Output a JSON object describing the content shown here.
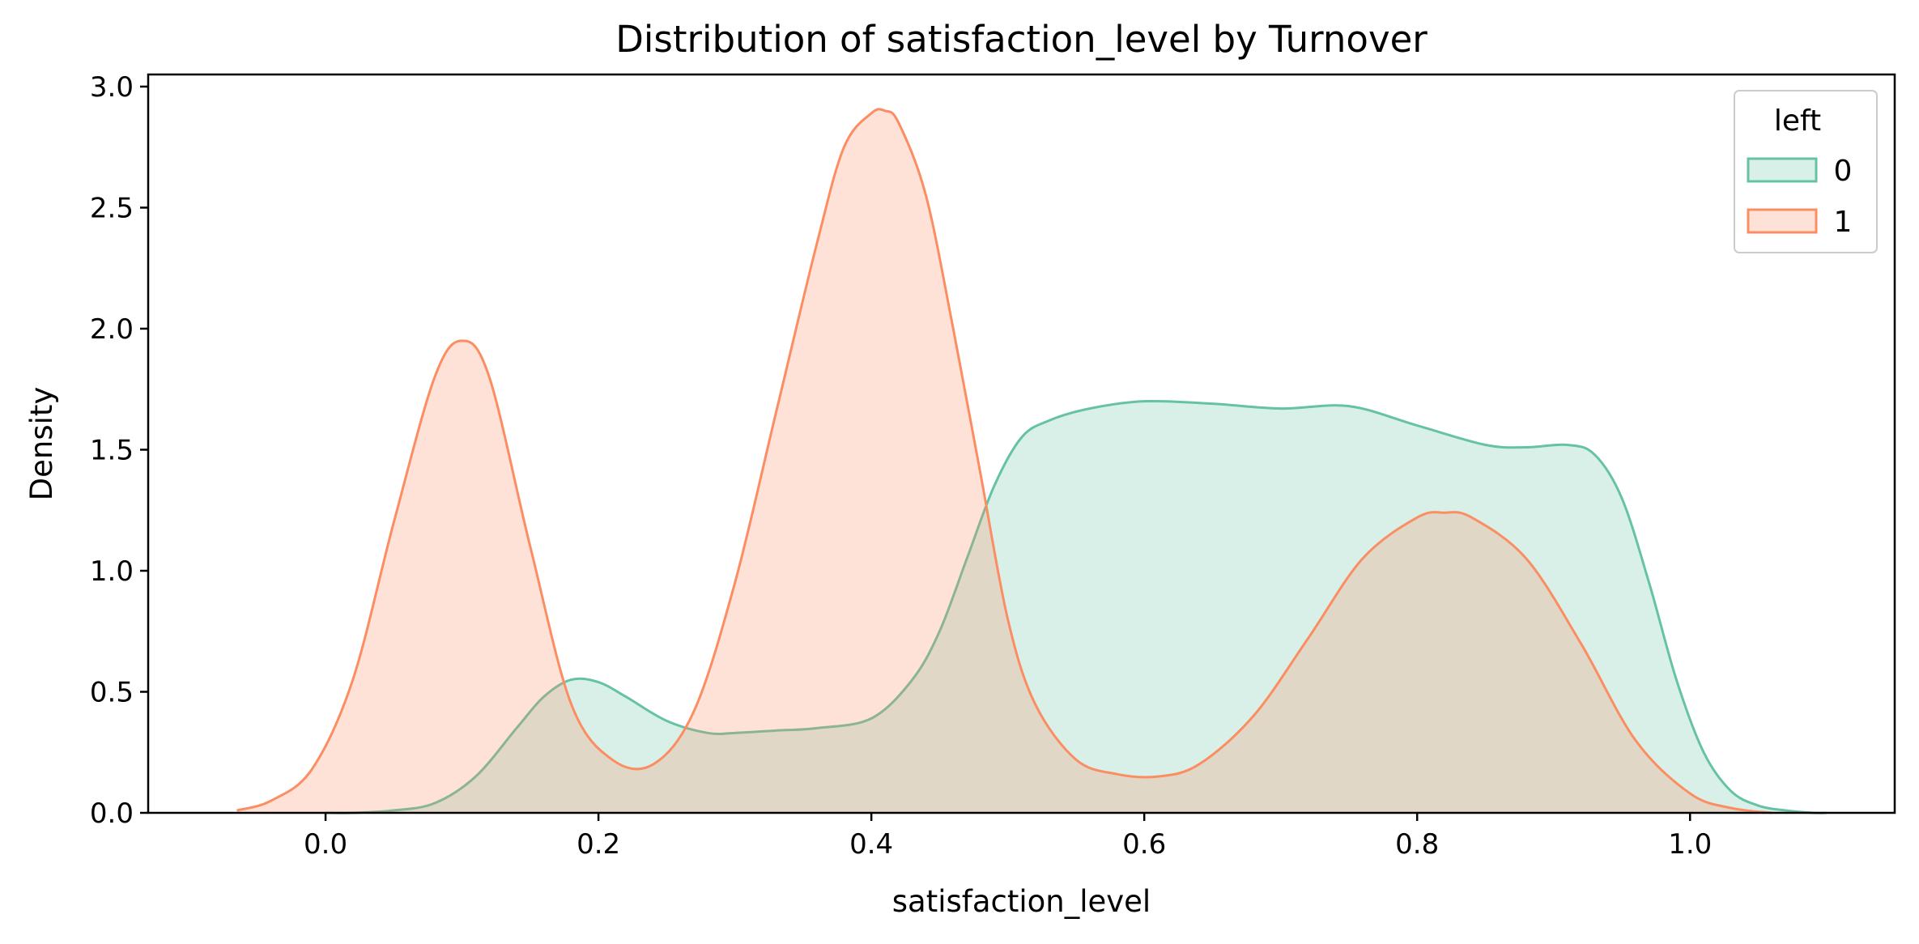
{
  "chart_data": {
    "type": "area",
    "title": "Distribution of satisfaction_level by Turnover",
    "xlabel": "satisfaction_level",
    "ylabel": "Density",
    "xlim": [
      -0.13,
      1.15
    ],
    "ylim": [
      0,
      3.05
    ],
    "xticks": [
      0.0,
      0.2,
      0.4,
      0.6,
      0.8,
      1.0
    ],
    "xtick_labels": [
      "0.0",
      "0.2",
      "0.4",
      "0.6",
      "0.8",
      "1.0"
    ],
    "yticks": [
      0.0,
      0.5,
      1.0,
      1.5,
      2.0,
      2.5,
      3.0
    ],
    "ytick_labels": [
      "0.0",
      "0.5",
      "1.0",
      "1.5",
      "2.0",
      "2.5",
      "3.0"
    ],
    "grid": false,
    "legend": {
      "title": "left",
      "position": "top-right"
    },
    "series": [
      {
        "name": "0",
        "color": "#66c2a5",
        "x": [
          0.0,
          0.02,
          0.05,
          0.08,
          0.11,
          0.14,
          0.16,
          0.18,
          0.2,
          0.22,
          0.25,
          0.28,
          0.3,
          0.33,
          0.36,
          0.4,
          0.43,
          0.45,
          0.47,
          0.49,
          0.51,
          0.53,
          0.56,
          0.6,
          0.65,
          0.7,
          0.75,
          0.8,
          0.85,
          0.88,
          0.91,
          0.93,
          0.95,
          0.97,
          0.99,
          1.01,
          1.03,
          1.05,
          1.07,
          1.09,
          1.1
        ],
        "y": [
          0.0,
          0.0,
          0.01,
          0.04,
          0.15,
          0.35,
          0.48,
          0.55,
          0.54,
          0.48,
          0.38,
          0.33,
          0.33,
          0.34,
          0.35,
          0.39,
          0.55,
          0.75,
          1.05,
          1.35,
          1.55,
          1.62,
          1.67,
          1.7,
          1.69,
          1.67,
          1.68,
          1.6,
          1.52,
          1.51,
          1.52,
          1.48,
          1.3,
          0.95,
          0.55,
          0.25,
          0.09,
          0.03,
          0.01,
          0.0,
          0.0
        ]
      },
      {
        "name": "1",
        "color": "#fc8d62",
        "x": [
          -0.065,
          -0.04,
          -0.01,
          0.02,
          0.05,
          0.08,
          0.1,
          0.12,
          0.15,
          0.18,
          0.21,
          0.24,
          0.27,
          0.3,
          0.33,
          0.36,
          0.38,
          0.4,
          0.41,
          0.42,
          0.44,
          0.46,
          0.48,
          0.5,
          0.52,
          0.55,
          0.58,
          0.61,
          0.64,
          0.68,
          0.72,
          0.76,
          0.8,
          0.82,
          0.84,
          0.88,
          0.92,
          0.96,
          1.0,
          1.03,
          1.06
        ],
        "y": [
          0.01,
          0.05,
          0.18,
          0.55,
          1.2,
          1.8,
          1.95,
          1.8,
          1.1,
          0.45,
          0.22,
          0.2,
          0.42,
          0.95,
          1.65,
          2.35,
          2.75,
          2.89,
          2.9,
          2.85,
          2.55,
          2.0,
          1.4,
          0.8,
          0.45,
          0.22,
          0.16,
          0.15,
          0.2,
          0.4,
          0.72,
          1.05,
          1.22,
          1.24,
          1.22,
          1.05,
          0.7,
          0.3,
          0.08,
          0.02,
          0.0
        ]
      }
    ]
  }
}
